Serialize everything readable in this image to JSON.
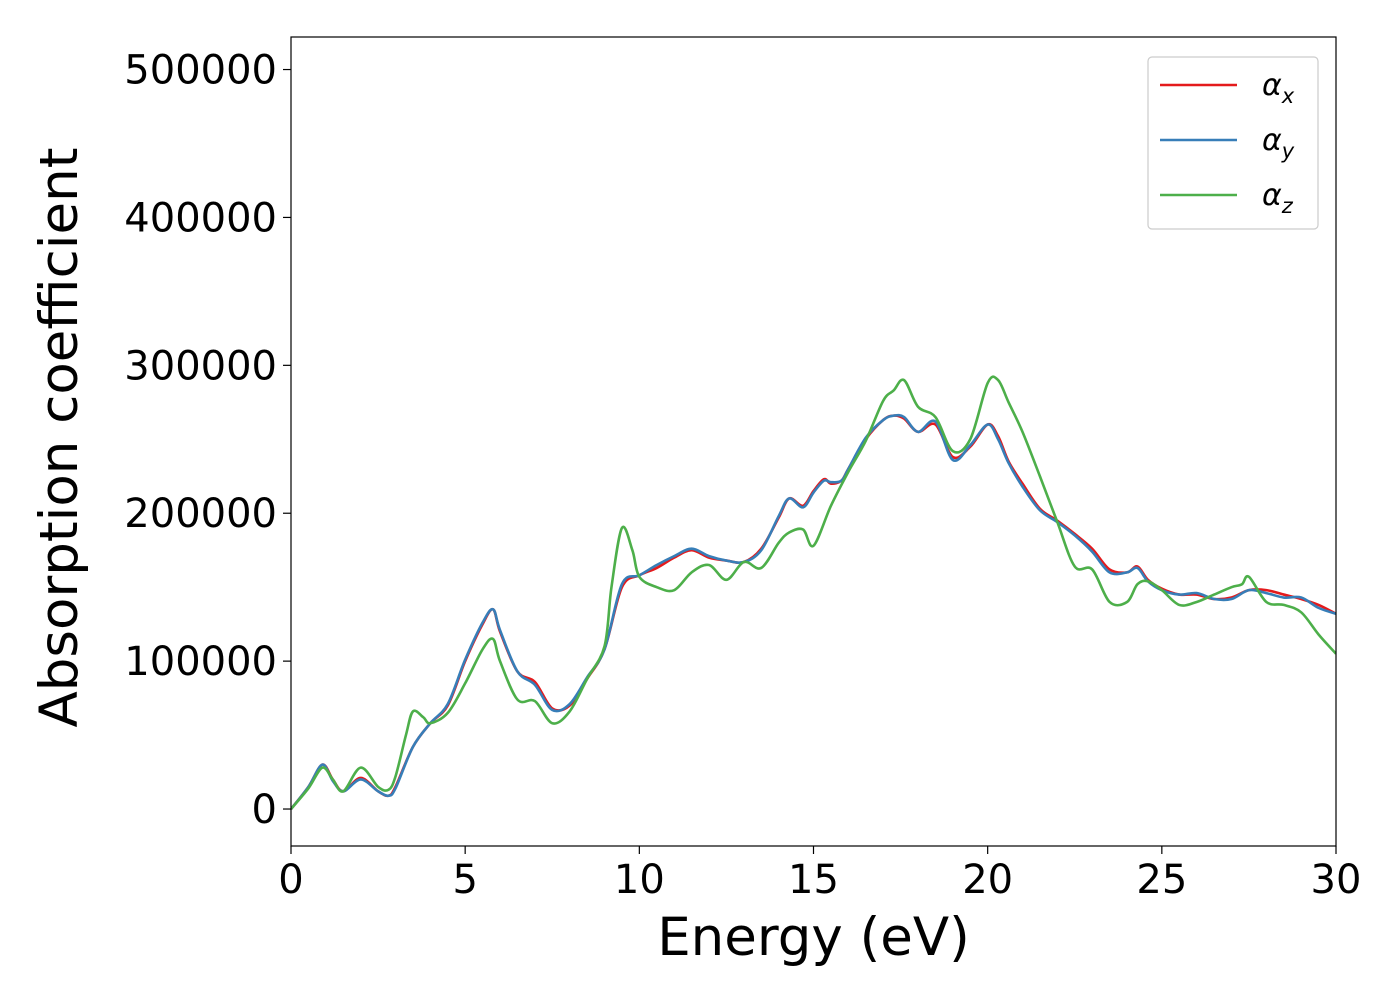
{
  "chart_data": {
    "type": "line",
    "title": "",
    "xlabel": "Energy (eV)",
    "ylabel": "Absorption coefficient",
    "xlim": [
      0,
      30
    ],
    "ylim": [
      -25000,
      522000
    ],
    "xticks": [
      0,
      5,
      10,
      15,
      20,
      25,
      30
    ],
    "yticks": [
      0,
      100000,
      200000,
      300000,
      400000,
      500000
    ],
    "grid": false,
    "legend_position": "top-right",
    "series": [
      {
        "name": "αx",
        "color": "#e41a1c",
        "x": [
          0,
          0.5,
          0.9,
          1.2,
          1.5,
          2.0,
          2.5,
          2.8,
          3.0,
          3.5,
          4.0,
          4.5,
          5.0,
          5.5,
          5.8,
          6.0,
          6.5,
          7.0,
          7.5,
          8.0,
          8.5,
          9.0,
          9.5,
          10.0,
          10.5,
          11.0,
          11.5,
          12.0,
          12.5,
          13.0,
          13.5,
          14.0,
          14.3,
          14.7,
          15.0,
          15.3,
          15.5,
          15.8,
          16.0,
          16.5,
          17.0,
          17.3,
          17.6,
          18.0,
          18.5,
          19.0,
          19.5,
          20.0,
          20.3,
          20.6,
          21.0,
          21.5,
          22.0,
          22.5,
          23.0,
          23.5,
          24.0,
          24.3,
          24.6,
          25.0,
          25.5,
          26.0,
          26.5,
          27.0,
          27.5,
          28.0,
          28.5,
          29.0,
          29.5,
          30.0
        ],
        "y": [
          0,
          15000,
          30000,
          20000,
          12000,
          21000,
          12000,
          9000,
          15000,
          42000,
          58000,
          70000,
          100000,
          125000,
          135000,
          120000,
          93000,
          86000,
          68000,
          70000,
          88000,
          108000,
          150000,
          158000,
          163000,
          170000,
          175000,
          170000,
          168000,
          167000,
          176000,
          197000,
          210000,
          205000,
          215000,
          223000,
          220000,
          222000,
          230000,
          250000,
          263000,
          266000,
          264000,
          255000,
          260000,
          238000,
          245000,
          260000,
          252000,
          235000,
          220000,
          203000,
          195000,
          186000,
          176000,
          162000,
          160000,
          164000,
          155000,
          149000,
          145000,
          145000,
          142000,
          143000,
          148000,
          148000,
          145000,
          142000,
          138000,
          132000
        ]
      },
      {
        "name": "αy",
        "color": "#377eb8",
        "x": [
          0,
          0.5,
          0.9,
          1.2,
          1.5,
          2.0,
          2.5,
          2.8,
          3.0,
          3.5,
          4.0,
          4.5,
          5.0,
          5.5,
          5.8,
          6.0,
          6.5,
          7.0,
          7.5,
          8.0,
          8.5,
          9.0,
          9.5,
          10.0,
          10.5,
          11.0,
          11.5,
          12.0,
          12.5,
          13.0,
          13.5,
          14.0,
          14.3,
          14.7,
          15.0,
          15.3,
          15.5,
          15.8,
          16.0,
          16.5,
          17.0,
          17.3,
          17.6,
          18.0,
          18.5,
          19.0,
          19.5,
          20.0,
          20.3,
          20.6,
          21.0,
          21.5,
          22.0,
          22.5,
          23.0,
          23.5,
          24.0,
          24.3,
          24.6,
          25.0,
          25.5,
          26.0,
          26.5,
          27.0,
          27.5,
          28.0,
          28.5,
          29.0,
          29.5,
          30.0
        ],
        "y": [
          0,
          15000,
          30000,
          19000,
          12000,
          20000,
          12000,
          9000,
          14000,
          42000,
          58000,
          71000,
          101000,
          126000,
          135000,
          121000,
          93000,
          84000,
          67000,
          71000,
          89000,
          108000,
          152000,
          158000,
          165000,
          171000,
          176000,
          171000,
          168000,
          167000,
          175000,
          198000,
          210000,
          204000,
          214000,
          222000,
          221000,
          222000,
          230000,
          251000,
          263000,
          266000,
          265000,
          255000,
          262000,
          236000,
          246000,
          260000,
          250000,
          234000,
          218000,
          202000,
          194000,
          185000,
          174000,
          160000,
          160000,
          163000,
          154000,
          148000,
          145000,
          146000,
          142000,
          142000,
          148000,
          146000,
          143000,
          143000,
          136000,
          132000
        ]
      },
      {
        "name": "αz",
        "color": "#4daf4a",
        "x": [
          0,
          0.5,
          0.9,
          1.2,
          1.5,
          2.0,
          2.5,
          2.8,
          3.0,
          3.3,
          3.5,
          3.8,
          4.0,
          4.5,
          5.0,
          5.5,
          5.8,
          6.0,
          6.5,
          7.0,
          7.5,
          8.0,
          8.5,
          9.0,
          9.2,
          9.5,
          9.8,
          10.0,
          10.5,
          11.0,
          11.5,
          12.0,
          12.5,
          13.0,
          13.5,
          14.0,
          14.3,
          14.7,
          15.0,
          15.5,
          16.0,
          16.5,
          17.0,
          17.3,
          17.6,
          18.0,
          18.5,
          19.0,
          19.5,
          20.0,
          20.3,
          20.6,
          21.0,
          21.5,
          22.0,
          22.5,
          23.0,
          23.5,
          24.0,
          24.3,
          24.6,
          25.0,
          25.5,
          26.0,
          26.5,
          27.0,
          27.3,
          27.5,
          28.0,
          28.5,
          29.0,
          29.5,
          30.0
        ],
        "y": [
          0,
          14000,
          28000,
          20000,
          12000,
          28000,
          15000,
          13000,
          22000,
          50000,
          66000,
          62000,
          58000,
          65000,
          85000,
          108000,
          115000,
          100000,
          74000,
          73000,
          58000,
          66000,
          88000,
          110000,
          150000,
          190000,
          175000,
          157000,
          150000,
          148000,
          160000,
          165000,
          155000,
          167000,
          163000,
          180000,
          187000,
          189000,
          178000,
          205000,
          228000,
          249000,
          276000,
          283000,
          290000,
          272000,
          265000,
          242000,
          250000,
          288000,
          290000,
          275000,
          255000,
          225000,
          194000,
          164000,
          162000,
          140000,
          140000,
          152000,
          154000,
          148000,
          138000,
          140000,
          145000,
          150000,
          152000,
          157000,
          140000,
          138000,
          133000,
          118000,
          105000
        ]
      }
    ]
  }
}
